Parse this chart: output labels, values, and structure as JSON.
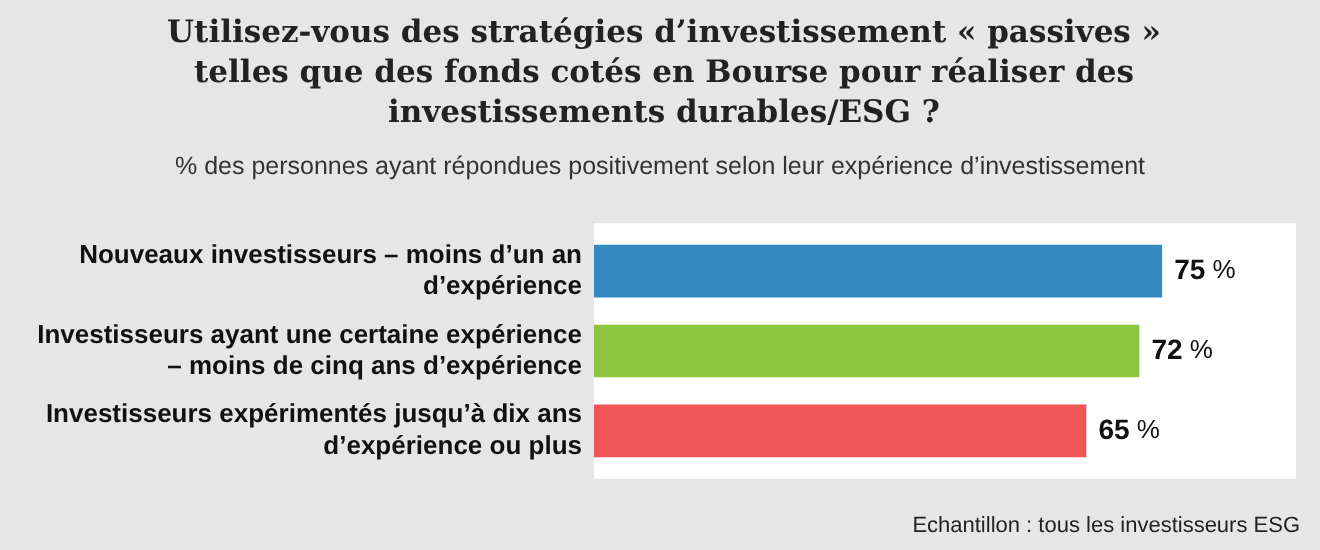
{
  "chart_data": {
    "type": "bar",
    "orientation": "horizontal",
    "title": "Utilisez-vous des stratégies d’investissement « passives » telles que des fonds cotés en Bourse pour réaliser des investissements durables/ESG ?",
    "subtitle": "% des personnes ayant répondues positivement selon leur expérience d’investissement",
    "categories": [
      "Nouveaux investisseurs – moins d’un an d’expérience",
      "Investisseurs ayant une certaine expérience – moins de cinq ans d’expérience",
      "Investisseurs expérimentés jusqu’à dix ans d’expérience ou plus"
    ],
    "values": [
      75,
      72,
      65
    ],
    "colors": [
      "#3589c1",
      "#8cc63f",
      "#ef5557"
    ],
    "value_labels": [
      "75 %",
      "72 %",
      "65 %"
    ],
    "annotations": [
      "Echantillon : tous les investisseurs ESG"
    ],
    "grid": false,
    "legend": false,
    "tick_labels": "y"
  }
}
